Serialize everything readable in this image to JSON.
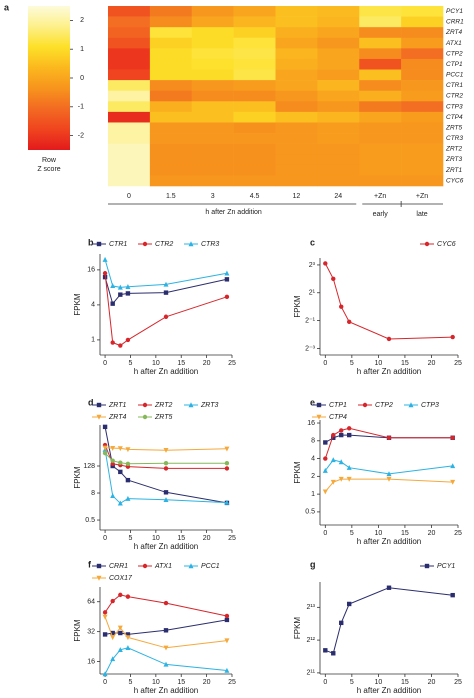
{
  "chart_data": [
    {
      "type": "heatmap",
      "panel": "a",
      "x": [
        "0",
        "1.5",
        "3",
        "4.5",
        "12",
        "24",
        "+Zn",
        "+Zn"
      ],
      "y": [
        "PCY1",
        "CRR1",
        "ZRT4",
        "ATX1",
        "CTP2",
        "CTP1",
        "PCC1",
        "CTR1",
        "CTR2",
        "CTP3",
        "CTP4",
        "ZRT5",
        "CTR3",
        "ZRT2",
        "ZRT3",
        "ZRT1",
        "CYC6"
      ],
      "z": [
        [
          -1.5,
          -0.8,
          -0.3,
          0,
          0.5,
          0.4,
          1.3,
          1.2
        ],
        [
          -1,
          -0.5,
          0,
          0.3,
          0.5,
          0.3,
          1.5,
          0.8
        ],
        [
          -1.2,
          1.2,
          1,
          0.8,
          0.2,
          0,
          -0.5,
          -0.5
        ],
        [
          -1.5,
          0.8,
          1,
          1.2,
          0,
          -0.3,
          0.5,
          -0.2
        ],
        [
          -2,
          1,
          1.2,
          1.3,
          0.3,
          0,
          -0.5,
          -1
        ],
        [
          -2,
          1,
          1.1,
          1.2,
          0.2,
          0,
          -1.5,
          -0.5
        ],
        [
          -1.8,
          1,
          1,
          1.3,
          0,
          -0.2,
          0.5,
          -0.5
        ],
        [
          1.5,
          -0.5,
          -0.3,
          -0.2,
          0,
          0.3,
          -0.5,
          -0.3
        ],
        [
          2,
          -0.8,
          -0.5,
          -0.5,
          -0.3,
          0,
          0.2,
          -0.2
        ],
        [
          1.5,
          0.2,
          0.5,
          0.5,
          -0.5,
          -0.3,
          -0.8,
          -1
        ],
        [
          -2.2,
          0.5,
          0.5,
          0.8,
          0.5,
          0.3,
          0,
          -0.2
        ],
        [
          2,
          -0.3,
          -0.3,
          -0.4,
          -0.3,
          -0.2,
          -0.3,
          -0.3
        ],
        [
          2,
          -0.3,
          -0.3,
          -0.3,
          -0.3,
          -0.2,
          -0.3,
          -0.3
        ],
        [
          2.2,
          -0.4,
          -0.4,
          -0.4,
          -0.3,
          -0.3,
          -0.2,
          -0.2
        ],
        [
          2.2,
          -0.4,
          -0.4,
          -0.4,
          -0.3,
          -0.3,
          -0.2,
          -0.2
        ],
        [
          2.2,
          -0.4,
          -0.4,
          -0.4,
          -0.3,
          -0.3,
          -0.2,
          -0.2
        ],
        [
          2.2,
          -0.3,
          -0.3,
          -0.3,
          -0.3,
          -0.3,
          -0.3,
          -0.3
        ]
      ],
      "zlim": [
        -2.5,
        2.5
      ],
      "zticks": [
        2,
        1,
        0,
        -1,
        -2
      ],
      "colors": [
        "#e31a1c",
        "#f0441f",
        "#f26a22",
        "#f7941d",
        "#fbb81e",
        "#fde028",
        "#fdf08a",
        "#fdfbdc"
      ],
      "colorbar_label": [
        "Row",
        "Z score"
      ],
      "xlabel": "h after Zn addition",
      "group_labels": [
        "early",
        "late"
      ]
    },
    {
      "type": "line",
      "panel": "b",
      "x": [
        0,
        1.5,
        3,
        4.5,
        12,
        24
      ],
      "xlim": [
        -1,
        25
      ],
      "xticks": [
        0,
        5,
        10,
        15,
        20,
        25
      ],
      "ylim": [
        0.55,
        30
      ],
      "yticks": [
        1,
        4,
        16
      ],
      "yscale": "log",
      "xlabel": "h after Zn addition",
      "ylabel": "FPKM",
      "series": [
        {
          "name": "CTR1",
          "color": "#2b2e6e",
          "marker": "square",
          "values": [
            12,
            4.2,
            6,
            6.3,
            6.5,
            11
          ]
        },
        {
          "name": "CTR2",
          "color": "#d7262b",
          "marker": "circle",
          "values": [
            14,
            0.9,
            0.8,
            1,
            2.5,
            5.5
          ]
        },
        {
          "name": "CTR3",
          "color": "#2cb3e3",
          "marker": "triangle",
          "values": [
            24,
            8.5,
            8,
            8.2,
            9,
            14
          ]
        }
      ]
    },
    {
      "type": "line",
      "panel": "c",
      "x": [
        0,
        1.5,
        3,
        4.5,
        12,
        24
      ],
      "xlim": [
        -1,
        25
      ],
      "xticks": [
        0,
        5,
        10,
        15,
        20,
        25
      ],
      "ylim": [
        0.09,
        11.3
      ],
      "yticks": [
        {
          "value": 8,
          "label": "2³"
        },
        {
          "value": 2,
          "label": "2¹"
        },
        {
          "value": 0.5,
          "label": "2⁻¹"
        },
        {
          "value": 0.125,
          "label": "2⁻³"
        }
      ],
      "yscale": "log",
      "xlabel": "h after Zn addition",
      "ylabel": "FPKM",
      "series": [
        {
          "name": "CYC6",
          "color": "#d7262b",
          "marker": "circle",
          "values": [
            8.6,
            4,
            1,
            0.47,
            0.2,
            0.22
          ]
        }
      ]
    },
    {
      "type": "line",
      "panel": "d",
      "x": [
        0,
        1.5,
        3,
        4.5,
        12,
        24
      ],
      "xlim": [
        -1,
        25
      ],
      "xticks": [
        0,
        5,
        10,
        15,
        20,
        25
      ],
      "ylim": [
        0.18,
        8600
      ],
      "yticks": [
        0.5,
        8,
        128
      ],
      "yscale": "log",
      "xlabel": "h after Zn addition",
      "ylabel": "FPKM",
      "series": [
        {
          "name": "ZRT1",
          "color": "#2b2e6e",
          "marker": "square",
          "values": [
            7100,
            128,
            70,
            30,
            8.6,
            2.9
          ]
        },
        {
          "name": "ZRT2",
          "color": "#d7262b",
          "marker": "circle",
          "values": [
            1100,
            160,
            140,
            120,
            100,
            100
          ]
        },
        {
          "name": "ZRT3",
          "color": "#2cb3e3",
          "marker": "triangle",
          "values": [
            680,
            6,
            2.8,
            4.5,
            4,
            3
          ]
        },
        {
          "name": "ZRT4",
          "color": "#f5a93b",
          "marker": "triangle-down",
          "values": [
            830,
            800,
            780,
            700,
            650,
            750
          ]
        },
        {
          "name": "ZRT5",
          "color": "#86b85a",
          "marker": "circle",
          "values": [
            480,
            220,
            180,
            160,
            170,
            170
          ]
        }
      ]
    },
    {
      "type": "line",
      "panel": "e",
      "x": [
        0,
        1.5,
        3,
        4.5,
        12,
        24
      ],
      "xlim": [
        -1,
        25
      ],
      "xticks": [
        0,
        5,
        10,
        15,
        20,
        25
      ],
      "ylim": [
        0.3,
        18
      ],
      "yticks": [
        0.5,
        1,
        2,
        4,
        8,
        16
      ],
      "yscale": "log",
      "xlabel": "h after Zn addition",
      "ylabel": "FPKM",
      "series": [
        {
          "name": "CTP1",
          "color": "#2b2e6e",
          "marker": "square",
          "values": [
            7.5,
            9,
            10,
            10,
            9,
            9
          ]
        },
        {
          "name": "CTP2",
          "color": "#d7262b",
          "marker": "circle",
          "values": [
            4,
            10,
            12,
            13,
            9,
            9
          ]
        },
        {
          "name": "CTP3",
          "color": "#2cb3e3",
          "marker": "triangle",
          "values": [
            2.5,
            3.8,
            3.5,
            2.8,
            2.2,
            3
          ]
        },
        {
          "name": "CTP4",
          "color": "#f5a93b",
          "marker": "triangle-down",
          "values": [
            1.1,
            1.6,
            1.8,
            1.8,
            1.8,
            1.6
          ]
        }
      ]
    },
    {
      "type": "line",
      "panel": "f",
      "x": [
        0,
        1.5,
        3,
        4.5,
        12,
        24
      ],
      "xlim": [
        -1,
        25
      ],
      "xticks": [
        0,
        5,
        10,
        15,
        20,
        25
      ],
      "ylim": [
        12,
        90
      ],
      "yticks": [
        16,
        32,
        64
      ],
      "yscale": "log",
      "xlabel": "h after Zn addition",
      "ylabel": "FPKM",
      "series": [
        {
          "name": "CRR1",
          "color": "#2b2e6e",
          "marker": "square",
          "values": [
            30,
            31,
            31,
            30,
            33,
            42
          ]
        },
        {
          "name": "ATX1",
          "color": "#d7262b",
          "marker": "circle",
          "values": [
            50,
            65,
            75,
            72,
            62,
            46
          ]
        },
        {
          "name": "PCC1",
          "color": "#2cb3e3",
          "marker": "triangle",
          "values": [
            12,
            17,
            21,
            22,
            15,
            13
          ]
        },
        {
          "name": "COX17",
          "color": "#f5a93b",
          "marker": "triangle-down",
          "values": [
            45,
            28,
            35,
            28,
            22,
            26
          ]
        }
      ]
    },
    {
      "type": "line",
      "panel": "g",
      "x": [
        0,
        1.5,
        3,
        4.5,
        12,
        24
      ],
      "xlim": [
        -1,
        25
      ],
      "xticks": [
        0,
        5,
        10,
        15,
        20,
        25
      ],
      "ylim": [
        2000,
        14000
      ],
      "yticks": [
        {
          "value": 2048,
          "label": "2¹¹"
        },
        {
          "value": 4096,
          "label": "2¹²"
        },
        {
          "value": 8192,
          "label": "2¹³"
        }
      ],
      "yscale": "log",
      "xlabel": "h after Zn addition",
      "ylabel": "FPKM",
      "series": [
        {
          "name": "PCY1",
          "color": "#2b2e6e",
          "marker": "square",
          "values": [
            3300,
            3100,
            5900,
            8800,
            12400,
            10600
          ]
        }
      ]
    }
  ]
}
